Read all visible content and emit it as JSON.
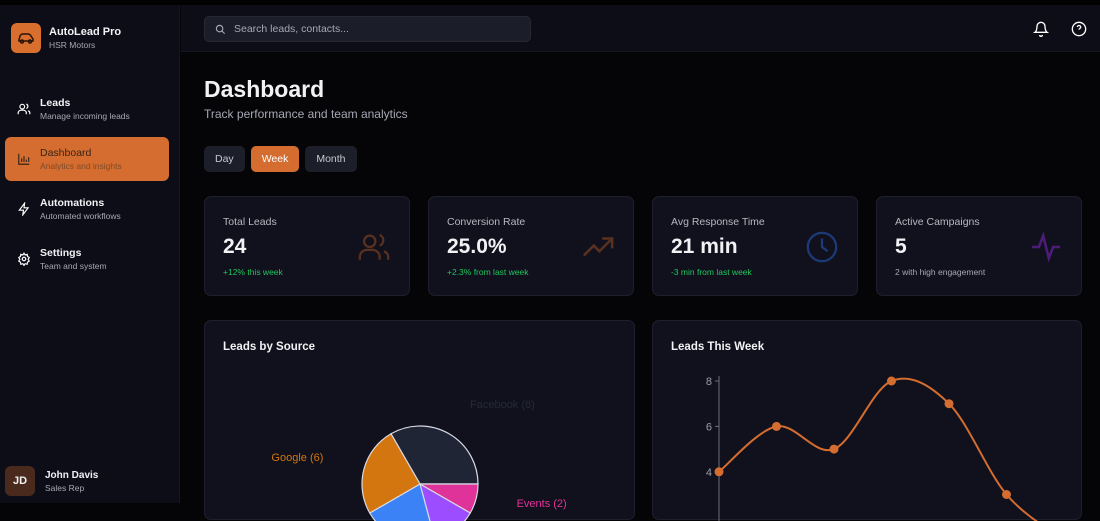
{
  "brand": {
    "title": "AutoLead Pro",
    "subtitle": "HSR Motors",
    "accent": "#d46d2f"
  },
  "sidebar": {
    "items": [
      {
        "label": "Leads",
        "sub": "Manage incoming leads",
        "icon": "users-icon",
        "active": false
      },
      {
        "label": "Dashboard",
        "sub": "Analytics and insights",
        "icon": "bar-chart-icon",
        "active": true
      },
      {
        "label": "Automations",
        "sub": "Automated workflows",
        "icon": "lightning-icon",
        "active": false
      },
      {
        "label": "Settings",
        "sub": "Team and system",
        "icon": "gear-icon",
        "active": false
      }
    ]
  },
  "user": {
    "initials": "JD",
    "name": "John Davis",
    "role": "Sales Rep"
  },
  "topbar": {
    "search_placeholder": "Search leads, contacts..."
  },
  "page": {
    "title": "Dashboard",
    "subtitle": "Track performance and team analytics"
  },
  "tabs": [
    {
      "label": "Day"
    },
    {
      "label": "Week",
      "active": true
    },
    {
      "label": "Month"
    }
  ],
  "stats": [
    {
      "label": "Total Leads",
      "value": "24",
      "note": "+12% this week",
      "icon": "users-icon",
      "icon_color": "#5a3120"
    },
    {
      "label": "Conversion Rate",
      "value": "25.0%",
      "note": "+2.3% from last week",
      "icon": "trending-up-icon",
      "icon_color": "#5a3120"
    },
    {
      "label": "Avg Response Time",
      "value": "21 min",
      "note": "-3 min from last week",
      "icon": "clock-icon",
      "icon_color": "#1d3a78"
    },
    {
      "label": "Active Campaigns",
      "value": "5",
      "note": "2 with high engagement",
      "icon": "activity-icon",
      "icon_color": "#4c1d78"
    }
  ],
  "chart_data": [
    {
      "type": "pie",
      "title": "Leads by Source",
      "slices": [
        {
          "label": "Facebook (8)",
          "value": 8,
          "color": "#1f2535"
        },
        {
          "label": "Events (2)",
          "value": 2,
          "color": "#e0339a"
        },
        {
          "value": 3,
          "color": "#9b4dff"
        },
        {
          "value": 5,
          "color": "#3b82f6"
        },
        {
          "label": "Google (6)",
          "value": 6,
          "color": "#d4760f"
        }
      ]
    },
    {
      "type": "line",
      "title": "Leads This Week",
      "y_ticks": [
        "4",
        "6",
        "8"
      ],
      "ylim": [
        2,
        8.5
      ],
      "series": [
        {
          "values": [
            4,
            6,
            5,
            8,
            7,
            3
          ],
          "color": "#d46d2f"
        }
      ]
    }
  ]
}
